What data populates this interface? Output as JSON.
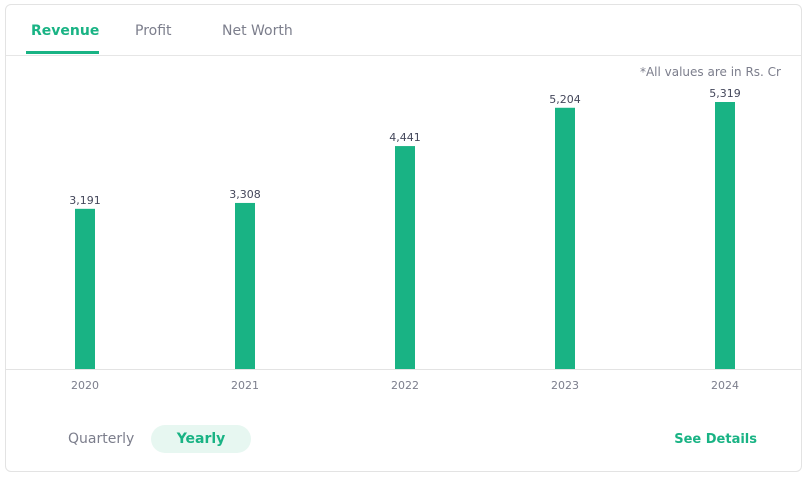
{
  "tabs": [
    "Revenue",
    "Profit",
    "Net Worth"
  ],
  "note": "*All values are in Rs. Cr",
  "chart_data": {
    "type": "bar",
    "categories": [
      "2020",
      "2021",
      "2022",
      "2023",
      "2024"
    ],
    "values": [
      3191,
      3308,
      4441,
      5204,
      5319
    ],
    "value_labels": [
      "3,191",
      "3,308",
      "4,441",
      "5,204",
      "5,319"
    ],
    "color": "#19b384"
  },
  "period_toggle": [
    "Quarterly",
    "Yearly"
  ],
  "link": "See Details"
}
